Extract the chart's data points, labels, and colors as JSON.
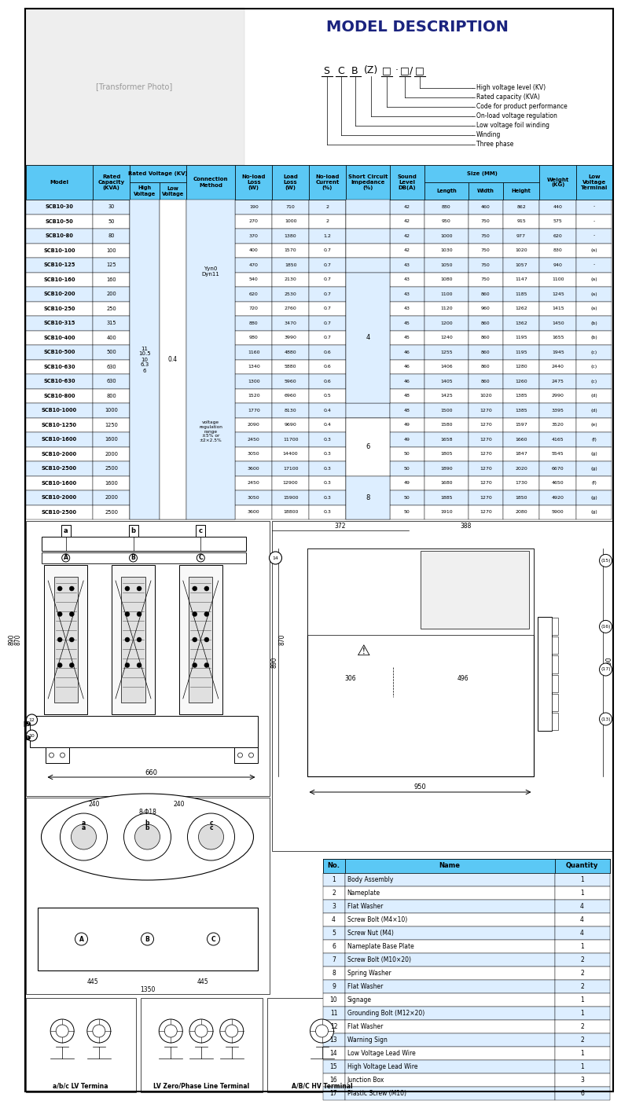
{
  "title": "MODEL DESCRIPTION",
  "model_labels": [
    "High voltage level (KV)",
    "Rated capacity (KVA)",
    "Code for product performance",
    "On-load voltage regulation",
    "Low voltage foil winding",
    "Winding",
    "Three phase"
  ],
  "table_rows": [
    [
      "SCB10-30",
      "30",
      "190",
      "710",
      "2",
      "42",
      "880",
      "460",
      "862",
      "440",
      "-"
    ],
    [
      "SCB10-50",
      "50",
      "270",
      "1000",
      "2",
      "42",
      "950",
      "750",
      "915",
      "575",
      "-"
    ],
    [
      "SCB10-80",
      "80",
      "370",
      "1380",
      "1.2",
      "42",
      "1000",
      "750",
      "977",
      "620",
      "-"
    ],
    [
      "SCB10-100",
      "100",
      "400",
      "1570",
      "0.7",
      "42",
      "1030",
      "750",
      "1020",
      "830",
      "(a)"
    ],
    [
      "SCB10-125",
      "125",
      "470",
      "1850",
      "0.7",
      "43",
      "1050",
      "750",
      "1057",
      "940",
      "-"
    ],
    [
      "SCB10-160",
      "160",
      "540",
      "2130",
      "0.7",
      "43",
      "1080",
      "750",
      "1147",
      "1100",
      "(a)"
    ],
    [
      "SCB10-200",
      "200",
      "620",
      "2530",
      "0.7",
      "43",
      "1100",
      "860",
      "1185",
      "1245",
      "(a)"
    ],
    [
      "SCB10-250",
      "250",
      "720",
      "2760",
      "0.7",
      "43",
      "1120",
      "960",
      "1262",
      "1415",
      "(a)"
    ],
    [
      "SCB10-315",
      "315",
      "880",
      "3470",
      "0.7",
      "45",
      "1200",
      "860",
      "1362",
      "1450",
      "(b)"
    ],
    [
      "SCB10-400",
      "400",
      "980",
      "3990",
      "0.7",
      "45",
      "1240",
      "860",
      "1195",
      "1655",
      "(b)"
    ],
    [
      "SCB10-500",
      "500",
      "1160",
      "4880",
      "0.6",
      "46",
      "1255",
      "860",
      "1195",
      "1945",
      "(c)"
    ],
    [
      "SCB10-630",
      "630",
      "1340",
      "5880",
      "0.6",
      "46",
      "1406",
      "860",
      "1280",
      "2440",
      "(c)"
    ],
    [
      "SCB10-630",
      "630",
      "1300",
      "5960",
      "0.6",
      "46",
      "1405",
      "860",
      "1260",
      "2475",
      "(c)"
    ],
    [
      "SCB10-800",
      "800",
      "1520",
      "6960",
      "0.5",
      "48",
      "1425",
      "1020",
      "1385",
      "2990",
      "(d)"
    ],
    [
      "SCB10-1000",
      "1000",
      "1770",
      "8130",
      "0.4",
      "48",
      "1500",
      "1270",
      "1385",
      "3395",
      "(d)"
    ],
    [
      "SCB10-1250",
      "1250",
      "2090",
      "9690",
      "0.4",
      "49",
      "1580",
      "1270",
      "1597",
      "3520",
      "(e)"
    ],
    [
      "SCB10-1600",
      "1600",
      "2450",
      "11700",
      "0.3",
      "49",
      "1658",
      "1270",
      "1660",
      "4165",
      "(f)"
    ],
    [
      "SCB10-2000",
      "2000",
      "3050",
      "14400",
      "0.3",
      "50",
      "1805",
      "1270",
      "1847",
      "5545",
      "(g)"
    ],
    [
      "SCB10-2500",
      "2500",
      "3600",
      "17100",
      "0.3",
      "50",
      "1890",
      "1270",
      "2020",
      "6670",
      "(g)"
    ],
    [
      "SCB10-1600",
      "1600",
      "2450",
      "12900",
      "0.3",
      "49",
      "1680",
      "1270",
      "1730",
      "4650",
      "(f)"
    ],
    [
      "SCB10-2000",
      "2000",
      "3050",
      "15900",
      "0.3",
      "50",
      "1885",
      "1270",
      "1850",
      "4920",
      "(g)"
    ],
    [
      "SCB10-2500",
      "2500",
      "3600",
      "18800",
      "0.3",
      "50",
      "1910",
      "1270",
      "2080",
      "5900",
      "(g)"
    ]
  ],
  "hv_text": "11\n10.5\n10\n6.3\n6",
  "lv_text": "0.4",
  "conn_text": "Yyn0\nDyn11",
  "volt_reg": "voltage\nregulation\nrange\n±5% or\n±2×2.5%",
  "imp4_rows": [
    5,
    14
  ],
  "imp6_rows": [
    15,
    19
  ],
  "imp8_rows": [
    19,
    22
  ],
  "parts_rows": [
    [
      "1",
      "Body Assembly",
      "1"
    ],
    [
      "2",
      "Nameplate",
      "1"
    ],
    [
      "3",
      "Flat Washer",
      "4"
    ],
    [
      "4",
      "Screw Bolt (M4×10)",
      "4"
    ],
    [
      "5",
      "Screw Nut (M4)",
      "4"
    ],
    [
      "6",
      "Nameplate Base Plate",
      "1"
    ],
    [
      "7",
      "Screw Bolt (M10×20)",
      "2"
    ],
    [
      "8",
      "Spring Washer",
      "2"
    ],
    [
      "9",
      "Flat Washer",
      "2"
    ],
    [
      "10",
      "Signage",
      "1"
    ],
    [
      "11",
      "Grounding Bolt (M12×20)",
      "1"
    ],
    [
      "12",
      "Flat Washer",
      "2"
    ],
    [
      "13",
      "Warning Sign",
      "2"
    ],
    [
      "14",
      "Low Voltage Lead Wire",
      "1"
    ],
    [
      "15",
      "High Voltage Lead Wire",
      "1"
    ],
    [
      "16",
      "Junction Box",
      "3"
    ],
    [
      "17",
      "Plastic Screw (M10)",
      "6"
    ]
  ],
  "header_cyan": "#5BC8F5",
  "header_blue": "#1B3A8C",
  "row_even": "#DDEEFF",
  "row_odd": "#FFFFFF",
  "text_dark": "#000000",
  "border": "#000000"
}
